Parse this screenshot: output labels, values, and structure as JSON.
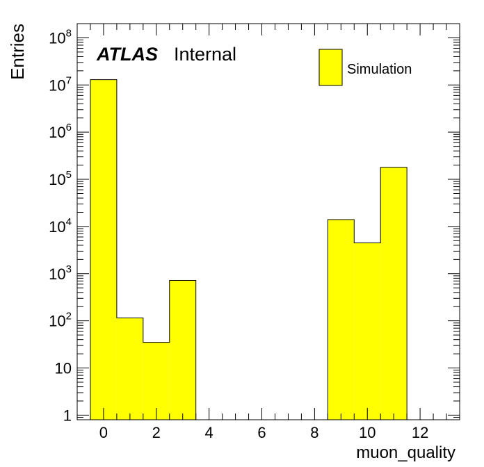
{
  "chart_data": {
    "type": "bar",
    "ylabel": "Entries",
    "xlabel": "muon_quality",
    "annotation_bold": "ATLAS",
    "annotation_text": "Internal",
    "legend": [
      {
        "name": "Simulation",
        "color": "#ffff00"
      }
    ],
    "legend_placement": "top-right",
    "yscale": "log",
    "xlim": [
      -1,
      13.5
    ],
    "ylim": [
      0.8,
      200000000
    ],
    "grid": false,
    "bars": [
      {
        "xlow": -0.5,
        "xhigh": 0.5,
        "value": 13000000
      },
      {
        "xlow": 0.5,
        "xhigh": 1.5,
        "value": 115
      },
      {
        "xlow": 1.5,
        "xhigh": 2.5,
        "value": 35
      },
      {
        "xlow": 2.5,
        "xhigh": 3.5,
        "value": 720
      },
      {
        "xlow": 8.5,
        "xhigh": 9.5,
        "value": 14000
      },
      {
        "xlow": 9.5,
        "xhigh": 10.5,
        "value": 4500
      },
      {
        "xlow": 10.5,
        "xhigh": 11.5,
        "value": 180000
      }
    ],
    "xticks": [
      {
        "value": 0,
        "label": "0"
      },
      {
        "value": 2,
        "label": "2"
      },
      {
        "value": 4,
        "label": "4"
      },
      {
        "value": 6,
        "label": "6"
      },
      {
        "value": 8,
        "label": "8"
      },
      {
        "value": 10,
        "label": "10"
      },
      {
        "value": 12,
        "label": "12"
      }
    ],
    "yticks": [
      {
        "value": 1,
        "base": "1",
        "exp": ""
      },
      {
        "value": 10,
        "base": "10",
        "exp": ""
      },
      {
        "value": 100,
        "base": "10",
        "exp": "2"
      },
      {
        "value": 1000,
        "base": "10",
        "exp": "3"
      },
      {
        "value": 10000,
        "base": "10",
        "exp": "4"
      },
      {
        "value": 100000,
        "base": "10",
        "exp": "5"
      },
      {
        "value": 1000000,
        "base": "10",
        "exp": "6"
      },
      {
        "value": 10000000,
        "base": "10",
        "exp": "7"
      },
      {
        "value": 100000000,
        "base": "10",
        "exp": "8"
      }
    ],
    "colors": {
      "fill": "#ffff00",
      "stroke": "#000000"
    }
  }
}
